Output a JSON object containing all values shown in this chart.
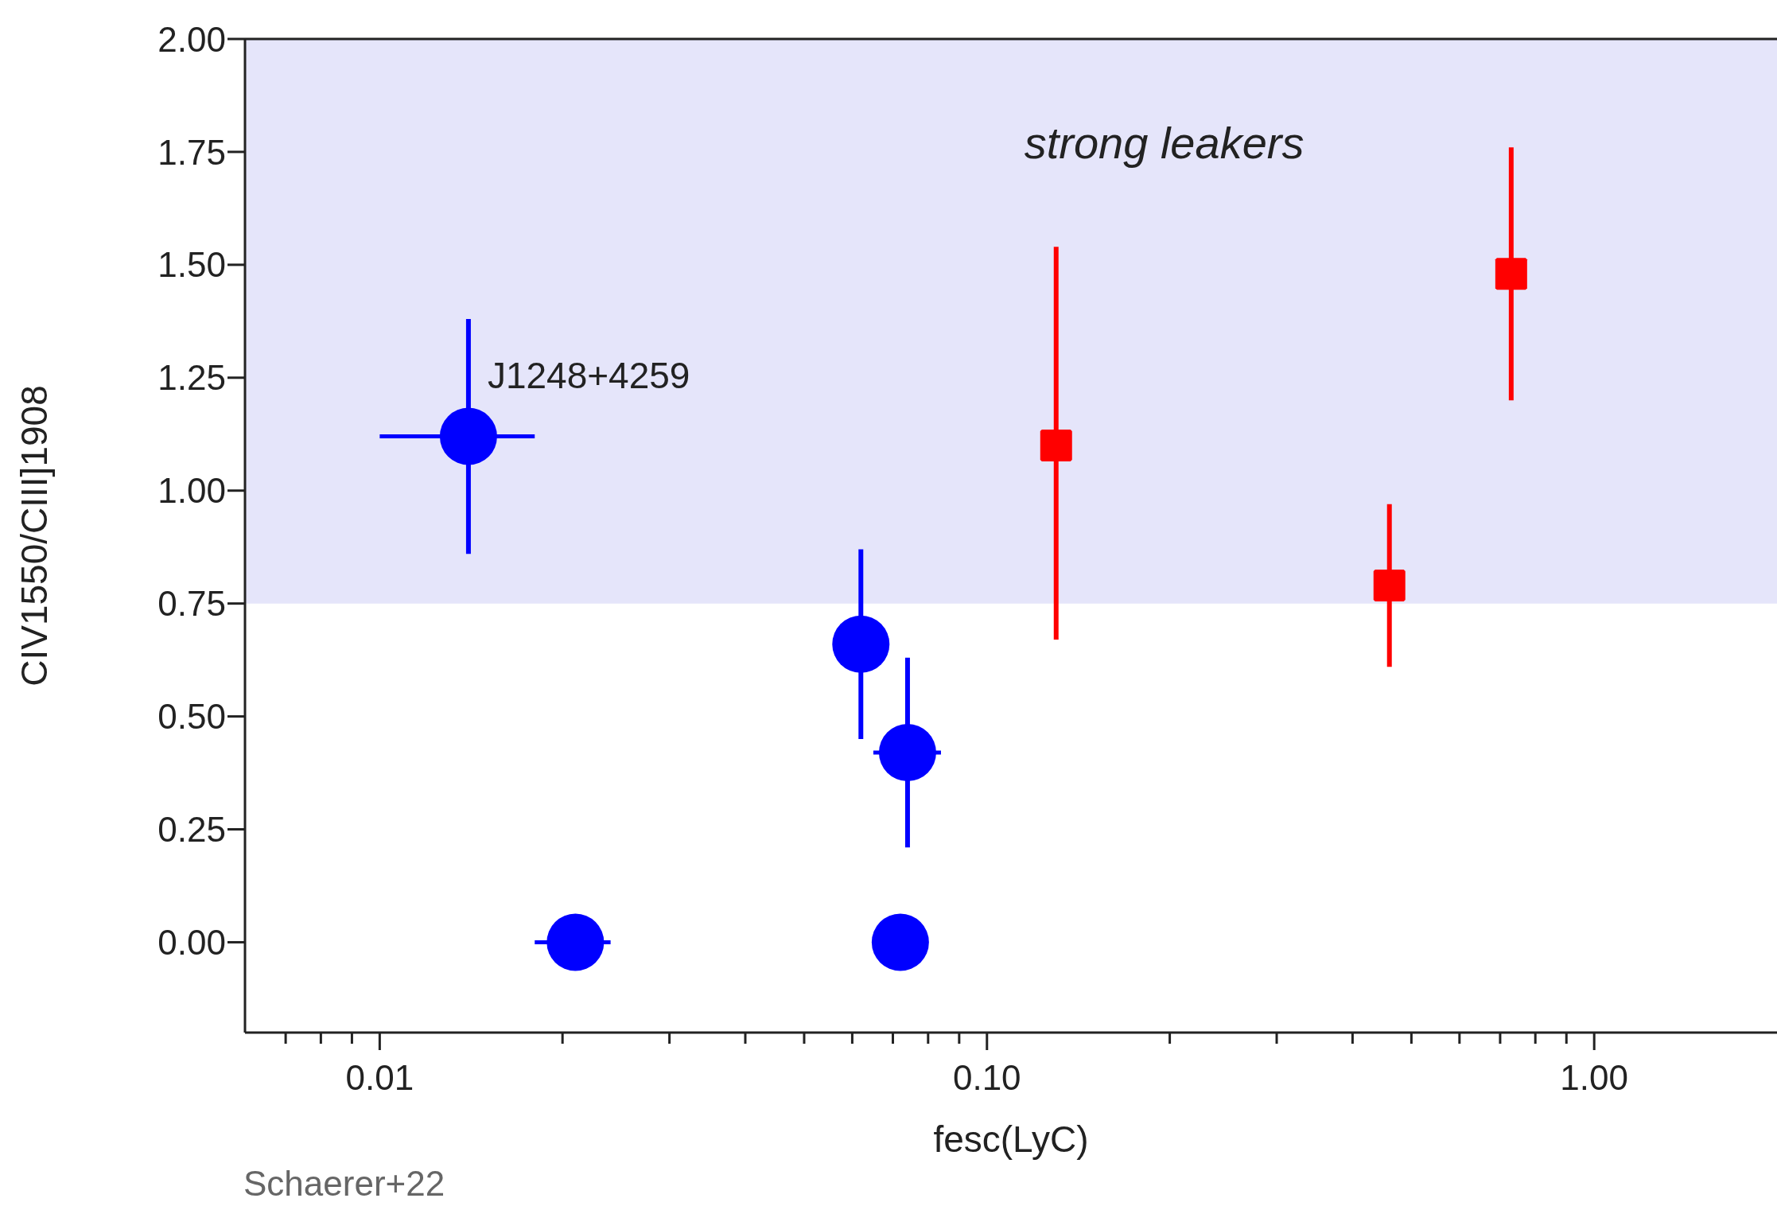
{
  "chart_data": {
    "type": "scatter",
    "xlabel": "fesc(LyC)",
    "ylabel": "CIV1550/CIII]1908",
    "log": "x",
    "xlim": [
      0.006,
      2
    ],
    "ylim": [
      -0.2,
      2.0
    ],
    "xticks": [
      {
        "value": 0.007,
        "label": null
      },
      {
        "value": 0.008,
        "label": null
      },
      {
        "value": 0.009,
        "label": null
      },
      {
        "value": 0.01,
        "label": "0.01"
      },
      {
        "value": 0.02,
        "label": null
      },
      {
        "value": 0.03,
        "label": null
      },
      {
        "value": 0.04,
        "label": null
      },
      {
        "value": 0.05,
        "label": null
      },
      {
        "value": 0.06,
        "label": null
      },
      {
        "value": 0.07,
        "label": null
      },
      {
        "value": 0.08,
        "label": null
      },
      {
        "value": 0.09,
        "label": null
      },
      {
        "value": 0.1,
        "label": "0.10"
      },
      {
        "value": 0.2,
        "label": null
      },
      {
        "value": 0.3,
        "label": null
      },
      {
        "value": 0.4,
        "label": null
      },
      {
        "value": 0.5,
        "label": null
      },
      {
        "value": 0.6,
        "label": null
      },
      {
        "value": 0.7,
        "label": null
      },
      {
        "value": 0.8,
        "label": null
      },
      {
        "value": 0.9,
        "label": null
      },
      {
        "value": 1,
        "label": "1.00"
      }
    ],
    "yticks": [
      {
        "value": 0,
        "label": "0.00"
      },
      {
        "value": 0.25,
        "label": "0.25"
      },
      {
        "value": 0.5,
        "label": "0.50"
      },
      {
        "value": 0.75,
        "label": "0.75"
      },
      {
        "value": 1,
        "label": "1.00"
      },
      {
        "value": 1.25,
        "label": "1.25"
      },
      {
        "value": 1.5,
        "label": "1.50"
      },
      {
        "value": 1.75,
        "label": "1.75"
      },
      {
        "value": 2,
        "label": "2.00"
      }
    ],
    "series": [
      {
        "color": "#0000ff",
        "marker": "circle",
        "x": [
          0.014,
          0.021,
          0.062,
          0.074,
          0.072
        ],
        "values": [
          1.12,
          0,
          0.66,
          0.42,
          0
        ],
        "errors": [
          0.26,
          null,
          0.21,
          0.21,
          null
        ],
        "xerrors": [
          [
            0.01,
            0.018
          ],
          [
            0.018,
            0.024
          ],
          null,
          [
            0.065,
            0.084
          ],
          null
        ]
      },
      {
        "color": "#ff0000",
        "marker": "square",
        "x": [
          0.13,
          0.46,
          0.73
        ],
        "values": [
          1.1,
          0.79,
          1.48
        ],
        "errors": [
          [
            0.67,
            1.54
          ],
          0.18,
          0.28
        ]
      }
    ],
    "bands": [
      {
        "axis": "y",
        "from": 0.75,
        "to": 2.0,
        "label": "strong leakers",
        "color": "#e5e5fa"
      }
    ],
    "annotations": [
      {
        "text": "J1248+4259",
        "x": 0.014,
        "y": 1.12
      },
      "Schaerer+22"
    ],
    "legend": false
  }
}
